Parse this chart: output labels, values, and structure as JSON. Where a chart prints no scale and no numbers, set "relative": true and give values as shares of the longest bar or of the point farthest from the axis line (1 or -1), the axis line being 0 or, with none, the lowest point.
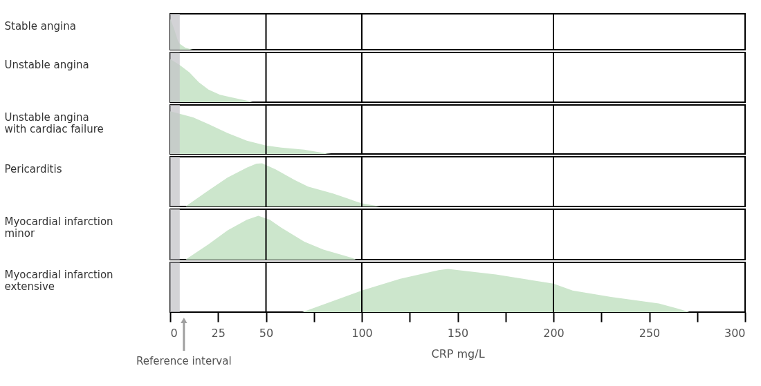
{
  "chart_data": [
    {
      "type": "area",
      "relative": true,
      "ylabel": "Stable angina",
      "xlim": [
        0,
        300
      ],
      "tick_labels": false,
      "color": "#cce6cc",
      "x": [
        0,
        2,
        4,
        5,
        8,
        11,
        12
      ],
      "values": [
        1.0,
        0.68,
        0.29,
        0.19,
        0.06,
        0.01,
        0
      ],
      "bands": [
        {
          "axis": "x",
          "from": 0,
          "to": 5,
          "color": "#c4c4c8"
        }
      ],
      "ref_lines": [
        {
          "axis": "x",
          "value": 50
        },
        {
          "axis": "x",
          "value": 100
        },
        {
          "axis": "x",
          "value": 200
        }
      ]
    },
    {
      "type": "area",
      "relative": true,
      "ylabel": "Unstable angina",
      "xlim": [
        0,
        300
      ],
      "tick_labels": false,
      "color": "#cce6cc",
      "x": [
        0,
        5,
        10,
        15,
        20,
        26,
        32,
        40,
        43
      ],
      "values": [
        1.0,
        0.86,
        0.69,
        0.46,
        0.29,
        0.17,
        0.11,
        0.035,
        0
      ],
      "bands": [
        {
          "axis": "x",
          "from": 0,
          "to": 5,
          "color": "#c4c4c8"
        }
      ],
      "ref_lines": [
        {
          "axis": "x",
          "value": 50
        },
        {
          "axis": "x",
          "value": 100
        },
        {
          "axis": "x",
          "value": 200
        }
      ]
    },
    {
      "type": "area",
      "relative": true,
      "ylabel": "Unstable angina\nwith cardiac failure",
      "xlim": [
        0,
        300
      ],
      "tick_labels": false,
      "color": "#cce6cc",
      "x": [
        0,
        12,
        20,
        30,
        40,
        50,
        58,
        70,
        82,
        84
      ],
      "values": [
        1.0,
        0.86,
        0.7,
        0.49,
        0.31,
        0.2,
        0.15,
        0.1,
        0.01,
        0
      ],
      "bands": [
        {
          "axis": "x",
          "from": 0,
          "to": 5,
          "color": "#c4c4c8"
        }
      ],
      "ref_lines": [
        {
          "axis": "x",
          "value": 50
        },
        {
          "axis": "x",
          "value": 100
        },
        {
          "axis": "x",
          "value": 200
        }
      ]
    },
    {
      "type": "area",
      "relative": true,
      "ylabel": "Pericarditis",
      "xlim": [
        0,
        300
      ],
      "tick_labels": false,
      "color": "#cce6cc",
      "x": [
        8,
        20,
        30,
        40,
        45,
        48,
        55,
        65,
        72,
        85,
        100,
        108,
        110
      ],
      "values": [
        0,
        0.37,
        0.67,
        0.9,
        0.99,
        1.0,
        0.86,
        0.61,
        0.46,
        0.3,
        0.07,
        0.01,
        0
      ],
      "bands": [
        {
          "axis": "x",
          "from": 0,
          "to": 5,
          "color": "#c4c4c8"
        }
      ],
      "ref_lines": [
        {
          "axis": "x",
          "value": 50
        },
        {
          "axis": "x",
          "value": 100
        },
        {
          "axis": "x",
          "value": 200
        }
      ]
    },
    {
      "type": "area",
      "relative": true,
      "ylabel": "Myocardial infarction\nminor",
      "xlim": [
        0,
        300
      ],
      "tick_labels": false,
      "color": "#cce6cc",
      "x": [
        8,
        20,
        30,
        40,
        46,
        52,
        58,
        70,
        80,
        95,
        97
      ],
      "values": [
        0,
        0.35,
        0.67,
        0.91,
        1.0,
        0.91,
        0.73,
        0.41,
        0.23,
        0.04,
        0
      ],
      "bands": [
        {
          "axis": "x",
          "from": 0,
          "to": 5,
          "color": "#c4c4c8"
        }
      ],
      "ref_lines": [
        {
          "axis": "x",
          "value": 50
        },
        {
          "axis": "x",
          "value": 100
        },
        {
          "axis": "x",
          "value": 200
        }
      ]
    },
    {
      "type": "area",
      "relative": true,
      "ylabel": "Myocardial infarction\nextensive",
      "xlabel": "CRP mg/L",
      "xlim": [
        0,
        300
      ],
      "tick_labels": "x",
      "color": "#cce6cc",
      "x": [
        69,
        100,
        120,
        140,
        145,
        170,
        200,
        210,
        230,
        255,
        265,
        271
      ],
      "values": [
        0,
        0.5,
        0.77,
        0.97,
        1.0,
        0.87,
        0.66,
        0.5,
        0.35,
        0.2,
        0.08,
        0
      ],
      "xticks": [
        0,
        25,
        50,
        {
          "value": 75,
          "label": null
        },
        100,
        {
          "value": 125,
          "label": null
        },
        150,
        {
          "value": 175,
          "label": null
        },
        200,
        {
          "value": 225,
          "label": null
        },
        250,
        {
          "value": 275,
          "label": null
        },
        300
      ],
      "bands": [
        {
          "axis": "x",
          "from": 0,
          "to": 5,
          "color": "#c4c4c8"
        }
      ],
      "ref_lines": [
        {
          "axis": "x",
          "value": 50
        },
        {
          "axis": "x",
          "value": 100
        },
        {
          "axis": "x",
          "value": 200
        }
      ],
      "annotations": [
        "Reference interval"
      ]
    }
  ]
}
